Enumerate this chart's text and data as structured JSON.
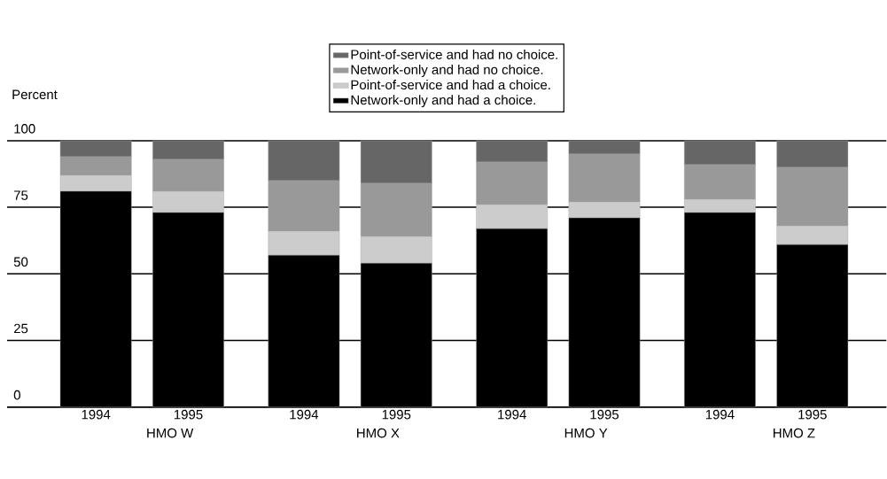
{
  "chart_data": {
    "type": "bar",
    "stacked": true,
    "ylabel": "Percent",
    "categories": [
      "1994",
      "1995",
      "1994",
      "1995",
      "1994",
      "1995",
      "1994",
      "1995"
    ],
    "series": [
      {
        "name": "Network-only and had a choice.",
        "color": "#000000",
        "values": [
          81,
          73,
          57,
          54,
          67,
          71,
          73,
          61
        ]
      },
      {
        "name": "Point-of-service and had a choice.",
        "color": "#cccccc",
        "values": [
          6,
          8,
          9,
          10,
          9,
          6,
          5,
          7
        ]
      },
      {
        "name": "Network-only and had no choice.",
        "color": "#999999",
        "values": [
          7,
          12,
          19,
          20,
          16,
          18,
          13,
          22
        ]
      },
      {
        "name": "Point-of-service and had no choice.",
        "color": "#666666",
        "values": [
          6,
          7,
          15,
          16,
          8,
          5,
          9,
          10
        ]
      }
    ],
    "annotations": [
      "HMO W",
      "HMO X",
      "HMO Y",
      "HMO Z"
    ],
    "ylim": [
      0,
      100
    ],
    "yticks": [
      0,
      25,
      50,
      75,
      100
    ],
    "grid": "y",
    "legend": "top"
  }
}
